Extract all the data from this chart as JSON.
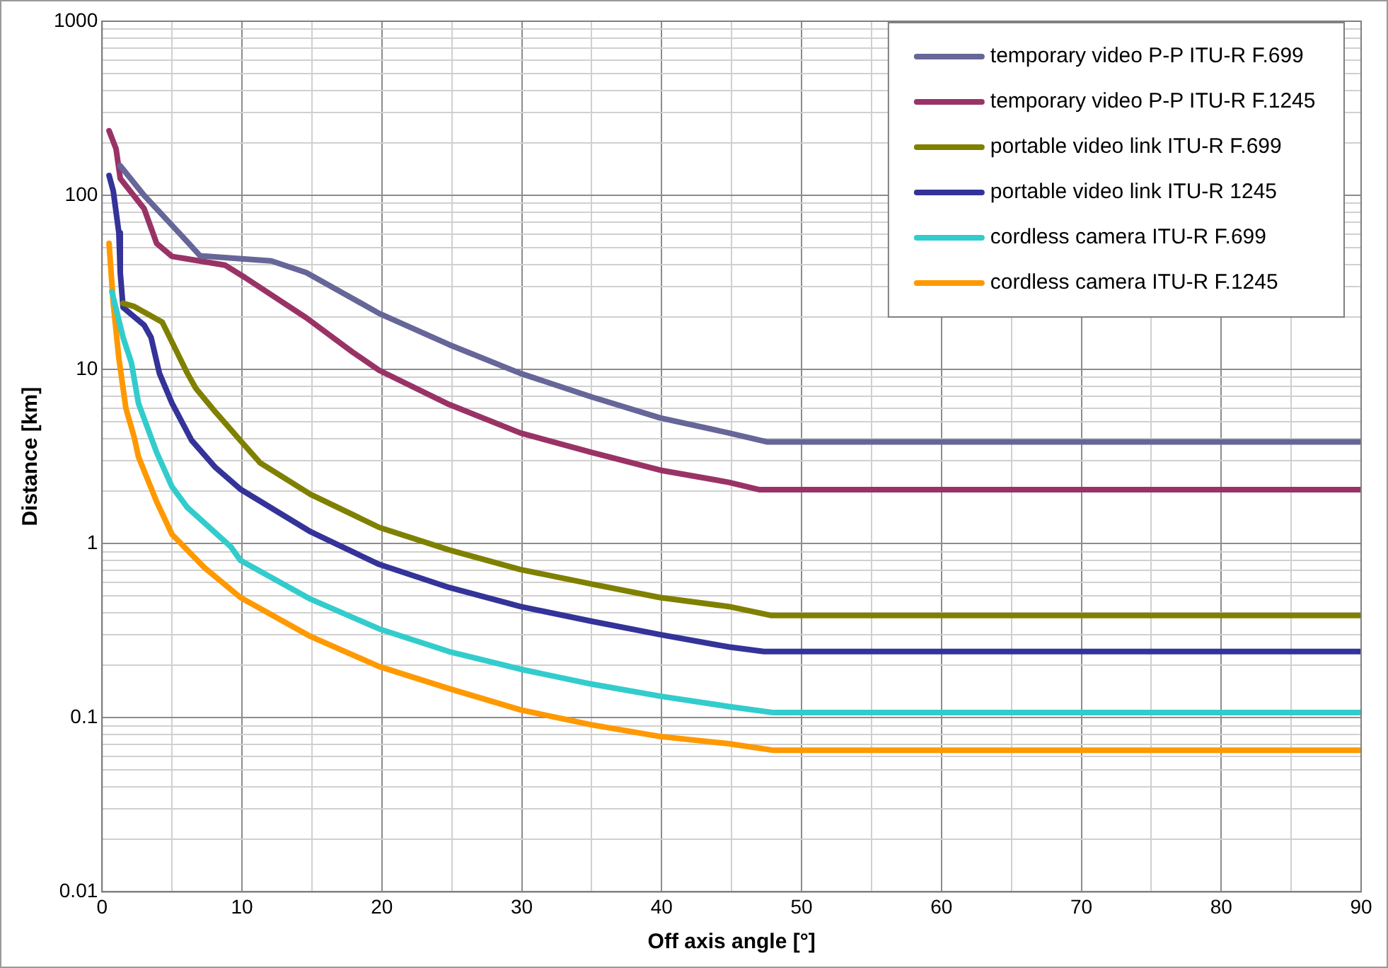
{
  "chart_data": {
    "type": "line",
    "xlabel": "Off axis angle [°]",
    "ylabel": "Distance [km]",
    "log": "y",
    "grid": true,
    "legend": "top right",
    "marker": "none",
    "line_style": "solid",
    "xlim": [
      0,
      90
    ],
    "xticks": [
      0,
      {
        "value": 5,
        "label": null
      },
      10,
      {
        "value": 15,
        "label": null
      },
      20,
      {
        "value": 25,
        "label": null
      },
      30,
      {
        "value": 35,
        "label": null
      },
      40,
      {
        "value": 45,
        "label": null
      },
      50,
      {
        "value": 55,
        "label": null
      },
      60,
      {
        "value": 65,
        "label": null
      },
      70,
      {
        "value": 75,
        "label": null
      },
      80,
      {
        "value": 85,
        "label": null
      },
      90
    ],
    "ylim": [
      0.01,
      1000
    ],
    "yticks": [
      0.01,
      {
        "value": 0.02,
        "label": null
      },
      {
        "value": 0.03,
        "label": null
      },
      {
        "value": 0.04,
        "label": null
      },
      {
        "value": 0.05,
        "label": null
      },
      {
        "value": 0.06,
        "label": null
      },
      {
        "value": 0.07,
        "label": null
      },
      {
        "value": 0.08,
        "label": null
      },
      {
        "value": 0.09,
        "label": null
      },
      0.1,
      {
        "value": 0.2,
        "label": null
      },
      {
        "value": 0.3,
        "label": null
      },
      {
        "value": 0.4,
        "label": null
      },
      {
        "value": 0.5,
        "label": null
      },
      {
        "value": 0.6,
        "label": null
      },
      {
        "value": 0.7,
        "label": null
      },
      {
        "value": 0.8,
        "label": null
      },
      {
        "value": 0.9,
        "label": null
      },
      1,
      {
        "value": 2,
        "label": null
      },
      {
        "value": 3,
        "label": null
      },
      {
        "value": 4,
        "label": null
      },
      {
        "value": 5,
        "label": null
      },
      {
        "value": 6,
        "label": null
      },
      {
        "value": 7,
        "label": null
      },
      {
        "value": 8,
        "label": null
      },
      {
        "value": 9,
        "label": null
      },
      10,
      {
        "value": 20,
        "label": null
      },
      {
        "value": 30,
        "label": null
      },
      {
        "value": 40,
        "label": null
      },
      {
        "value": 50,
        "label": null
      },
      {
        "value": 60,
        "label": null
      },
      {
        "value": 70,
        "label": null
      },
      {
        "value": 80,
        "label": null
      },
      {
        "value": 90,
        "label": null
      },
      100,
      {
        "value": 200,
        "label": null
      },
      {
        "value": 300,
        "label": null
      },
      {
        "value": 400,
        "label": null
      },
      {
        "value": 500,
        "label": null
      },
      {
        "value": 600,
        "label": null
      },
      {
        "value": 700,
        "label": null
      },
      {
        "value": 800,
        "label": null
      },
      {
        "value": 900,
        "label": null
      },
      1000
    ],
    "series": [
      {
        "name": "temporary video P-P ITU-R F.699",
        "color": "#666699",
        "x": [
          1.3,
          3,
          6.2,
          7,
          12.1,
          14.6,
          17.9,
          19.8,
          24.8,
          29.9,
          35,
          39.9,
          44.8,
          47.5,
          90
        ],
        "values": [
          148,
          100,
          53,
          45,
          42,
          36,
          25.6,
          21,
          13.9,
          9.5,
          6.95,
          5.27,
          4.32,
          3.84,
          3.84
        ]
      },
      {
        "name": "temporary video P-P ITU-R F.1245",
        "color": "#993366",
        "x": [
          0.5,
          1,
          1.3,
          3,
          3.9,
          5,
          8.8,
          10.2,
          14.6,
          17.9,
          19.8,
          24.8,
          29.9,
          35,
          39.9,
          44.8,
          47,
          90
        ],
        "values": [
          235,
          185,
          125,
          84,
          53,
          44.6,
          39.7,
          33.8,
          19.8,
          12.6,
          9.9,
          6.3,
          4.32,
          3.34,
          2.64,
          2.25,
          2.04,
          2.04
        ]
      },
      {
        "name": "portable video link ITU-R F.699",
        "color": "#808000",
        "x": [
          1.5,
          2.3,
          4.3,
          6.1,
          6.7,
          8.1,
          9.9,
          11.3,
          14.9,
          19.8,
          24.8,
          29.9,
          35,
          39.9,
          44.8,
          47.8,
          90
        ],
        "values": [
          24,
          23,
          18.7,
          9.5,
          7.8,
          5.7,
          3.9,
          2.91,
          1.92,
          1.24,
          0.92,
          0.71,
          0.586,
          0.49,
          0.435,
          0.387,
          0.387
        ]
      },
      {
        "name": "portable video link ITU-R 1245",
        "color": "#333399",
        "x": [
          0.5,
          0.8,
          1.2,
          1.3,
          1.5,
          3,
          3.5,
          4.1,
          5,
          6.4,
          8.1,
          9.9,
          14.9,
          19.8,
          24.8,
          29.9,
          35,
          39.9,
          44.8,
          47.3,
          90
        ],
        "values": [
          130,
          106,
          61,
          36,
          22.7,
          18,
          15.3,
          9.5,
          6.4,
          3.92,
          2.74,
          2.05,
          1.17,
          0.76,
          0.56,
          0.435,
          0.358,
          0.3,
          0.255,
          0.24,
          0.24
        ]
      },
      {
        "name": "cordless camera ITU-R F.699",
        "color": "#33cccc",
        "x": [
          0.7,
          1.5,
          2.1,
          2.6,
          3.9,
          5,
          6.1,
          9.2,
          9.9,
          14.9,
          19.8,
          24.8,
          29.9,
          35,
          39.9,
          44.8,
          48,
          90
        ],
        "values": [
          28,
          15.3,
          10.9,
          6.4,
          3.34,
          2.12,
          1.61,
          0.96,
          0.8,
          0.48,
          0.324,
          0.24,
          0.19,
          0.156,
          0.133,
          0.116,
          0.107,
          0.107
        ]
      },
      {
        "name": "cordless camera ITU-R F.1245",
        "color": "#ff9900",
        "x": [
          0.5,
          0.8,
          1.2,
          1.7,
          2.3,
          2.6,
          3.9,
          5,
          7.3,
          9.9,
          14.9,
          19.8,
          24.8,
          29.9,
          35,
          39.9,
          44.8,
          48,
          90
        ],
        "values": [
          53,
          24,
          11.6,
          6,
          4.07,
          3.15,
          1.74,
          1.13,
          0.73,
          0.49,
          0.293,
          0.197,
          0.147,
          0.111,
          0.091,
          0.078,
          0.071,
          0.065,
          0.065
        ]
      }
    ]
  }
}
